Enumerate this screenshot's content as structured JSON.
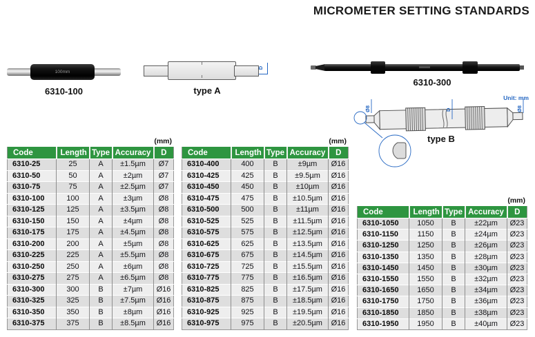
{
  "title": "MICROMETER SETTING STANDARDS",
  "unit_note": "Unit: mm",
  "colors": {
    "header_green": "#2e9540",
    "annotation_blue": "#2366c2",
    "row_dark": "#dedede",
    "row_light": "#eeeeee"
  },
  "figures": {
    "f1": {
      "label": "6310-100",
      "marking": "100mm"
    },
    "f2": {
      "label": "type A",
      "dim_end": "D"
    },
    "f3": {
      "label": "6310-300"
    },
    "f4": {
      "label": "type B",
      "dim_left": "Ø8",
      "dim_mid": "D",
      "dim_right": "Ø8"
    }
  },
  "tables": [
    {
      "unit": "(mm)",
      "headers": [
        "Code",
        "Length",
        "Type",
        "Accuracy",
        "D"
      ],
      "rows": [
        [
          "6310-25",
          "25",
          "A",
          "±1.5µm",
          "Ø7"
        ],
        [
          "6310-50",
          "50",
          "A",
          "±2µm",
          "Ø7"
        ],
        [
          "6310-75",
          "75",
          "A",
          "±2.5µm",
          "Ø7"
        ],
        [
          "6310-100",
          "100",
          "A",
          "±3µm",
          "Ø8"
        ],
        [
          "6310-125",
          "125",
          "A",
          "±3.5µm",
          "Ø8"
        ],
        [
          "6310-150",
          "150",
          "A",
          "±4µm",
          "Ø8"
        ],
        [
          "6310-175",
          "175",
          "A",
          "±4.5µm",
          "Ø8"
        ],
        [
          "6310-200",
          "200",
          "A",
          "±5µm",
          "Ø8"
        ],
        [
          "6310-225",
          "225",
          "A",
          "±5.5µm",
          "Ø8"
        ],
        [
          "6310-250",
          "250",
          "A",
          "±6µm",
          "Ø8"
        ],
        [
          "6310-275",
          "275",
          "A",
          "±6.5µm",
          "Ø8"
        ],
        [
          "6310-300",
          "300",
          "B",
          "±7µm",
          "Ø16"
        ],
        [
          "6310-325",
          "325",
          "B",
          "±7.5µm",
          "Ø16"
        ],
        [
          "6310-350",
          "350",
          "B",
          "±8µm",
          "Ø16"
        ],
        [
          "6310-375",
          "375",
          "B",
          "±8.5µm",
          "Ø16"
        ]
      ]
    },
    {
      "unit": "(mm)",
      "headers": [
        "Code",
        "Length",
        "Type",
        "Accuracy",
        "D"
      ],
      "rows": [
        [
          "6310-400",
          "400",
          "B",
          "±9µm",
          "Ø16"
        ],
        [
          "6310-425",
          "425",
          "B",
          "±9.5µm",
          "Ø16"
        ],
        [
          "6310-450",
          "450",
          "B",
          "±10µm",
          "Ø16"
        ],
        [
          "6310-475",
          "475",
          "B",
          "±10.5µm",
          "Ø16"
        ],
        [
          "6310-500",
          "500",
          "B",
          "±11µm",
          "Ø16"
        ],
        [
          "6310-525",
          "525",
          "B",
          "±11.5µm",
          "Ø16"
        ],
        [
          "6310-575",
          "575",
          "B",
          "±12.5µm",
          "Ø16"
        ],
        [
          "6310-625",
          "625",
          "B",
          "±13.5µm",
          "Ø16"
        ],
        [
          "6310-675",
          "675",
          "B",
          "±14.5µm",
          "Ø16"
        ],
        [
          "6310-725",
          "725",
          "B",
          "±15.5µm",
          "Ø16"
        ],
        [
          "6310-775",
          "775",
          "B",
          "±16.5µm",
          "Ø16"
        ],
        [
          "6310-825",
          "825",
          "B",
          "±17.5µm",
          "Ø16"
        ],
        [
          "6310-875",
          "875",
          "B",
          "±18.5µm",
          "Ø16"
        ],
        [
          "6310-925",
          "925",
          "B",
          "±19.5µm",
          "Ø16"
        ],
        [
          "6310-975",
          "975",
          "B",
          "±20.5µm",
          "Ø16"
        ]
      ]
    },
    {
      "unit": "(mm)",
      "headers": [
        "Code",
        "Length",
        "Type",
        "Accuracy",
        "D"
      ],
      "rows": [
        [
          "6310-1050",
          "1050",
          "B",
          "±22µm",
          "Ø23"
        ],
        [
          "6310-1150",
          "1150",
          "B",
          "±24µm",
          "Ø23"
        ],
        [
          "6310-1250",
          "1250",
          "B",
          "±26µm",
          "Ø23"
        ],
        [
          "6310-1350",
          "1350",
          "B",
          "±28µm",
          "Ø23"
        ],
        [
          "6310-1450",
          "1450",
          "B",
          "±30µm",
          "Ø23"
        ],
        [
          "6310-1550",
          "1550",
          "B",
          "±32µm",
          "Ø23"
        ],
        [
          "6310-1650",
          "1650",
          "B",
          "±34µm",
          "Ø23"
        ],
        [
          "6310-1750",
          "1750",
          "B",
          "±36µm",
          "Ø23"
        ],
        [
          "6310-1850",
          "1850",
          "B",
          "±38µm",
          "Ø23"
        ],
        [
          "6310-1950",
          "1950",
          "B",
          "±40µm",
          "Ø23"
        ]
      ]
    }
  ]
}
